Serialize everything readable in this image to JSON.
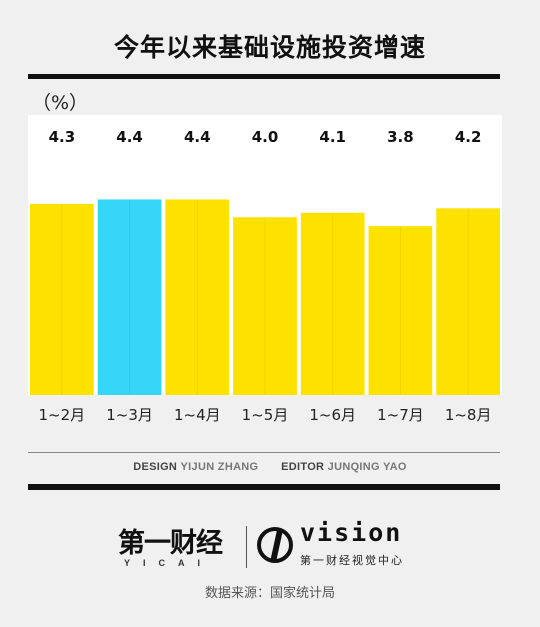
{
  "title": "今年以来基础设施投资增速",
  "unit_label": "（%）",
  "chart_data": {
    "type": "bar",
    "title": "今年以来基础设施投资增速",
    "ylabel": "（%）",
    "categories": [
      "1~2月",
      "1~3月",
      "1~4月",
      "1~5月",
      "1~6月",
      "1~7月",
      "1~8月"
    ],
    "values": [
      4.3,
      4.4,
      4.4,
      4.0,
      4.1,
      3.8,
      4.2
    ],
    "data_labels": [
      "4.3",
      "4.4",
      "4.4",
      "4.0",
      "4.1",
      "3.8",
      "4.2"
    ],
    "highlight_index": 1,
    "ylim": [
      0,
      5.5
    ],
    "grid": false
  },
  "colors": {
    "bar": "#fde200",
    "highlight": "#36d6f9",
    "background": "#f0f0f0",
    "rule": "#111111"
  },
  "credits": {
    "design_label": "DESIGN",
    "design_name": "YIJUN ZHANG",
    "editor_label": "EDITOR",
    "editor_name": "JUNQING YAO"
  },
  "logos": {
    "left_main": "第一财经",
    "left_sub": "YICAI",
    "right_main": "vision",
    "right_sub": "第一财经视觉中心"
  },
  "source": "数据来源：国家统计局"
}
